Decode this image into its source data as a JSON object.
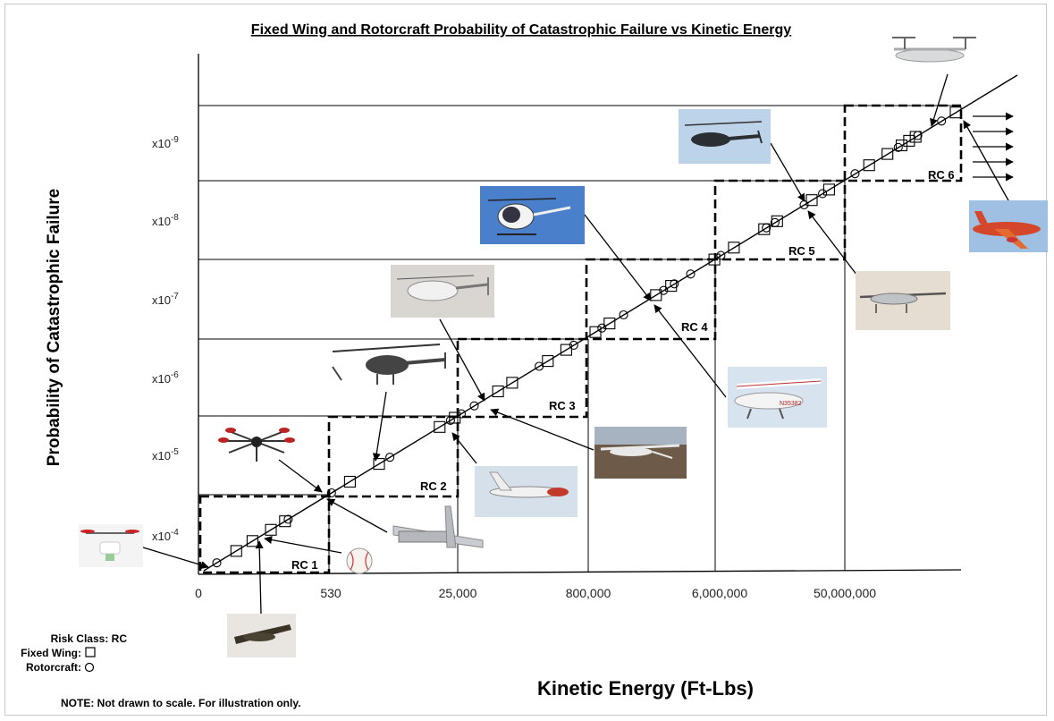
{
  "chart_data": {
    "type": "line",
    "title_part1": "Fixed Wing and Rotorcraft",
    "title_part2": " Probability of Catastrophic  Failure vs Kinetic Energy",
    "ylabel": "Probability of Catastrophic  Failure",
    "xlabel": "Kinetic  Energy (Ft-Lbs)",
    "x_ticks": [
      "0",
      "530",
      "25,000",
      "800,000",
      "6,000,000",
      "50,000,000"
    ],
    "y_ticks": [
      {
        "base": "x10",
        "exp": "-4"
      },
      {
        "base": "x10",
        "exp": "-5"
      },
      {
        "base": "x10",
        "exp": "-6"
      },
      {
        "base": "x10",
        "exp": "-7"
      },
      {
        "base": "x10",
        "exp": "-8"
      },
      {
        "base": "x10",
        "exp": "-9"
      }
    ],
    "risk_classes": [
      "RC 1",
      "RC 2",
      "RC 3",
      "RC 4",
      "RC 5",
      "RC 6"
    ],
    "series": [
      {
        "marker": "square",
        "values": [
          0.3,
          0.45,
          0.62,
          0.75,
          1.35,
          1.62,
          2.18,
          2.32,
          2.72,
          2.85,
          3.18,
          3.35,
          3.62,
          3.75,
          4.18,
          4.32,
          4.72,
          4.9,
          5.18,
          5.3,
          5.62,
          5.78,
          6.15,
          6.32,
          6.45,
          6.52,
          6.58,
          6.95
        ]
      },
      {
        "marker": "circle",
        "values": [
          0.12,
          0.78,
          1.18,
          1.72,
          2.28,
          2.38,
          2.5,
          3.1,
          3.42,
          3.68,
          3.88,
          4.25,
          4.35,
          4.5,
          4.78,
          5.2,
          5.28,
          5.55,
          5.72,
          6.02,
          6.42,
          6.6,
          6.82
        ]
      }
    ]
  },
  "images": [
    {
      "name": "quadcopter-photo"
    },
    {
      "name": "hexacopter-photo"
    },
    {
      "name": "unmanned-helicopter-photo"
    },
    {
      "name": "camcopter-photo"
    },
    {
      "name": "light-helicopter-photo"
    },
    {
      "name": "blackhawk-helicopter-photo"
    },
    {
      "name": "tiltrotor-photo"
    },
    {
      "name": "airliner-photo"
    },
    {
      "name": "predator-drone-photo"
    },
    {
      "name": "cessna-photo"
    },
    {
      "name": "shadow-uav-photo"
    },
    {
      "name": "scaneagle-photo"
    },
    {
      "name": "fixed-wing-uav-photo"
    },
    {
      "name": "baseball-photo"
    },
    {
      "name": "hand-launched-uav-photo"
    }
  ],
  "legend": {
    "risk_class": "Risk Class:  RC",
    "fixed_wing": "Fixed Wing:",
    "rotorcraft": "Rotorcraft:"
  },
  "note": "NOTE:  Not drawn to scale.  For illustration only."
}
